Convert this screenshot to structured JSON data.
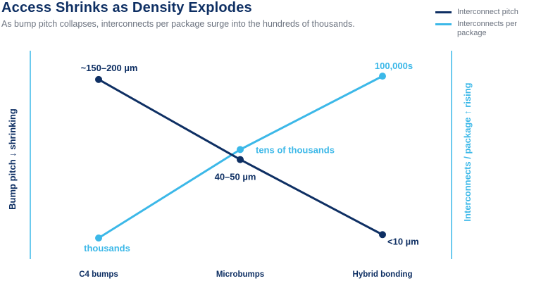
{
  "title": "Access Shrinks as Density Explodes",
  "subtitle": "As bump pitch collapses, interconnects per package surge into the hundreds of thousands.",
  "colors": {
    "pitch": "#0e2f63",
    "interconnects": "#3cb8e8",
    "axis_line": "#3cb8e8"
  },
  "legend": [
    {
      "name": "Interconnect pitch",
      "color": "#0e2f63"
    },
    {
      "name": "Interconnects per package",
      "color": "#3cb8e8"
    }
  ],
  "chart_data": {
    "type": "line",
    "categories": [
      "C4 bumps",
      "Microbumps",
      "Hybrid bonding"
    ],
    "ylabel_left": "Bump pitch ↓ shrinking",
    "ylabel_right": "Interconnects / package ↑ rising",
    "series": [
      {
        "name": "Interconnect pitch",
        "axis": "left",
        "values": [
          0.95,
          0.47,
          0.02
        ],
        "labels": [
          "~150–200 µm",
          "40–50 µm",
          "<10 µm"
        ]
      },
      {
        "name": "Interconnects per package",
        "axis": "right",
        "values": [
          0.0,
          0.53,
          0.97
        ],
        "labels": [
          "thousands",
          "tens of thousands",
          "100,000s"
        ]
      }
    ]
  }
}
